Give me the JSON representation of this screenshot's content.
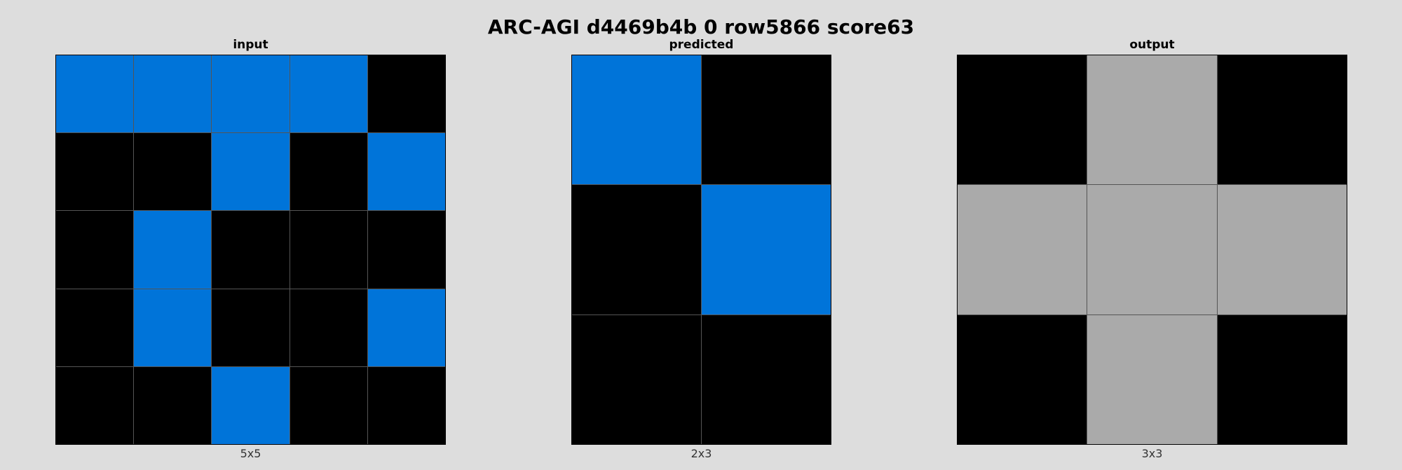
{
  "title": "ARC-AGI d4469b4b 0 row5866 score63",
  "palette": {
    "0": "#000000",
    "1": "#0074D9",
    "5": "#AAAAAA"
  },
  "panels": [
    {
      "label": "input",
      "size": "5x5",
      "rows": 5,
      "cols": 5,
      "grid": [
        [
          1,
          1,
          1,
          1,
          0
        ],
        [
          0,
          0,
          1,
          0,
          1
        ],
        [
          0,
          1,
          0,
          0,
          0
        ],
        [
          0,
          1,
          0,
          0,
          1
        ],
        [
          0,
          0,
          1,
          0,
          0
        ]
      ]
    },
    {
      "label": "predicted",
      "size": "2x3",
      "rows": 3,
      "cols": 2,
      "grid": [
        [
          1,
          0
        ],
        [
          0,
          1
        ],
        [
          0,
          0
        ]
      ]
    },
    {
      "label": "output",
      "size": "3x3",
      "rows": 3,
      "cols": 3,
      "grid": [
        [
          0,
          5,
          0
        ],
        [
          5,
          5,
          5
        ],
        [
          0,
          5,
          0
        ]
      ]
    }
  ]
}
